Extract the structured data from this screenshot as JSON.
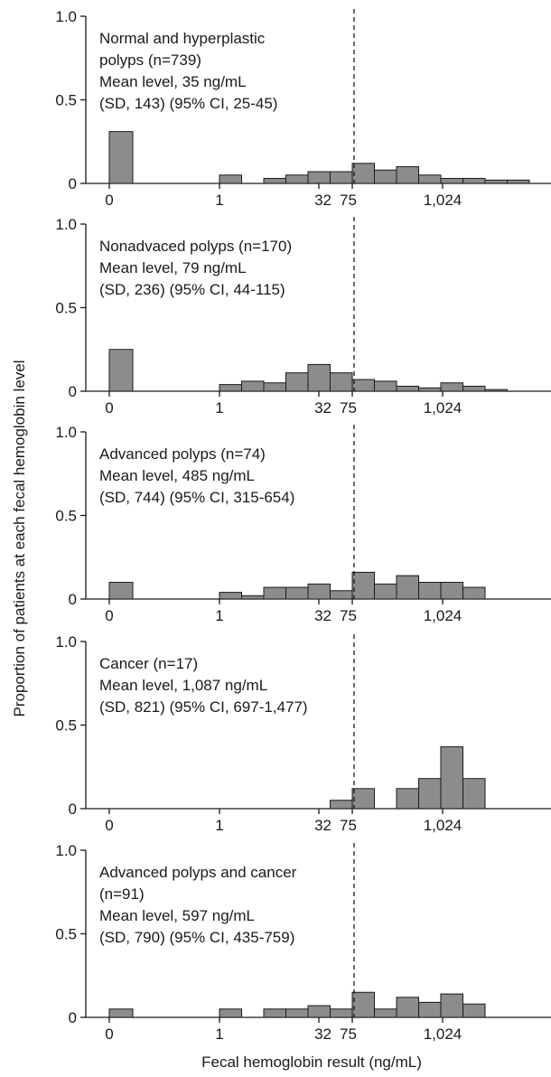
{
  "chart_data": {
    "type": "bar",
    "xlabel": "Fecal hemoglobin result (ng/mL)",
    "ylabel": "Proportion of patients at each fecal hemoglobin level",
    "ylim": [
      0,
      1.0
    ],
    "y_ticks": [
      "0",
      "0.5",
      "1.0"
    ],
    "x_ticks": [
      "0",
      "1",
      "32",
      "75",
      "1,024"
    ],
    "cutoff_value": 75,
    "bar_color": "#8c8c8c",
    "panels": [
      {
        "annotation": [
          "Normal and hyperplastic",
          "polyps (n=739)",
          "Mean level, 35 ng/mL",
          "(SD, 143) (95% CI, 25-45)"
        ],
        "zero_bar": 0.31,
        "bars": [
          0.05,
          0,
          0.03,
          0.05,
          0.07,
          0.07,
          0.12,
          0.08,
          0.1,
          0.05,
          0.03,
          0.03,
          0.02,
          0.02,
          0,
          0,
          0,
          0,
          0,
          0,
          0,
          0,
          0,
          0
        ]
      },
      {
        "annotation": [
          "Nonadvaced polyps (n=170)",
          "Mean level, 79 ng/mL",
          "(SD, 236) (95% CI, 44-115)"
        ],
        "zero_bar": 0.25,
        "bars": [
          0.04,
          0.06,
          0.05,
          0.11,
          0.16,
          0.11,
          0.07,
          0.06,
          0.03,
          0.02,
          0.05,
          0.03,
          0.01,
          0,
          0,
          0,
          0,
          0,
          0,
          0,
          0,
          0,
          0,
          0
        ]
      },
      {
        "annotation": [
          "Advanced polyps (n=74)",
          "Mean level, 485 ng/mL",
          "(SD, 744) (95% CI, 315-654)"
        ],
        "zero_bar": 0.1,
        "bars": [
          0.04,
          0.02,
          0.07,
          0.07,
          0.09,
          0.05,
          0.16,
          0.09,
          0.14,
          0.1,
          0.1,
          0.07,
          0,
          0,
          0,
          0,
          0,
          0,
          0,
          0,
          0,
          0,
          0,
          0
        ]
      },
      {
        "annotation": [
          "Cancer (n=17)",
          "Mean level, 1,087 ng/mL",
          "(SD, 821) (95% CI, 697-1,477)"
        ],
        "zero_bar": 0,
        "bars": [
          0,
          0,
          0,
          0,
          0,
          0.05,
          0.12,
          0,
          0.12,
          0.18,
          0.37,
          0.18,
          0,
          0,
          0,
          0,
          0,
          0,
          0,
          0,
          0,
          0,
          0,
          0
        ]
      },
      {
        "annotation": [
          "Advanced polyps and cancer",
          "(n=91)",
          "Mean level, 597 ng/mL",
          "(SD, 790) (95% CI, 435-759)"
        ],
        "zero_bar": 0.05,
        "bars": [
          0.05,
          0,
          0.05,
          0.05,
          0.07,
          0.05,
          0.15,
          0.05,
          0.12,
          0.09,
          0.14,
          0.08,
          0,
          0,
          0,
          0,
          0,
          0,
          0,
          0,
          0,
          0,
          0,
          0
        ]
      }
    ]
  }
}
